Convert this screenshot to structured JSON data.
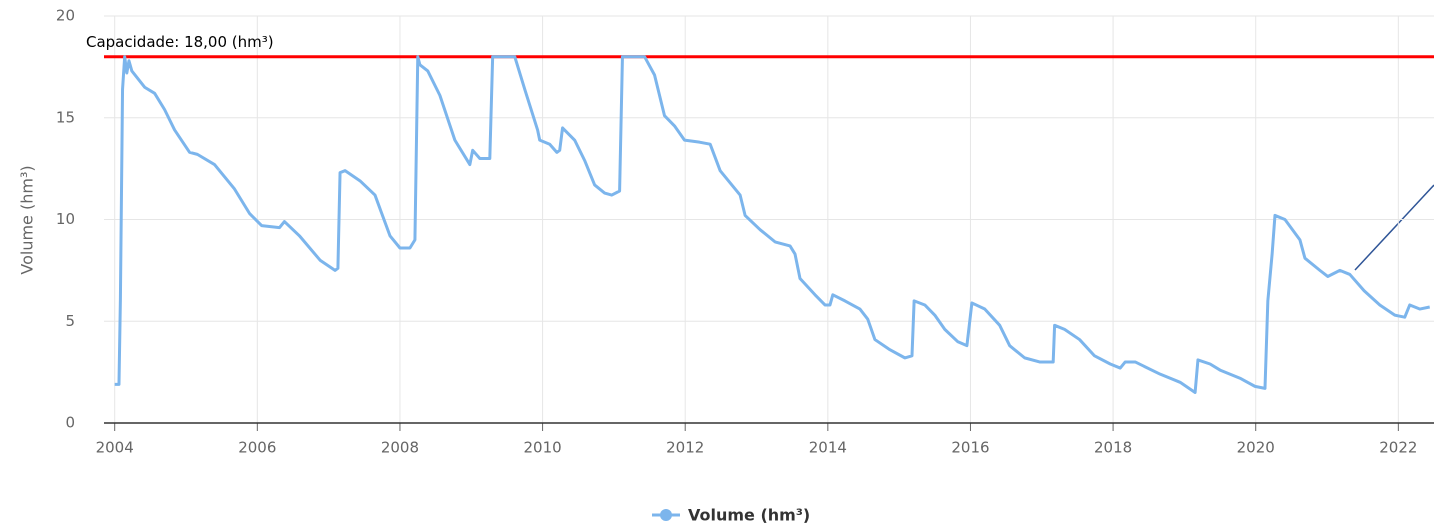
{
  "chart_data": {
    "type": "line",
    "y_axis_label": "Volume (hm³)",
    "capacity": {
      "value": 18,
      "label": "Capacidade: 18,00 (hm³)",
      "color": "#ff0000"
    },
    "xlim": [
      2003.85,
      2022.5
    ],
    "xticks": [
      2004,
      2006,
      2008,
      2010,
      2012,
      2014,
      2016,
      2018,
      2020,
      2022
    ],
    "ylim": [
      0,
      20
    ],
    "yticks": [
      0,
      5,
      10,
      15,
      20
    ],
    "grid": true,
    "legend": "bottom",
    "x": [
      2004.0,
      2004.06,
      2004.08,
      2004.11,
      2004.14,
      2004.17,
      2004.2,
      2004.24,
      2004.42,
      2004.56,
      2004.7,
      2004.84,
      2005.05,
      2005.16,
      2005.4,
      2005.68,
      2005.89,
      2006.06,
      2006.31,
      2006.38,
      2006.59,
      2006.88,
      2007.09,
      2007.13,
      2007.16,
      2007.23,
      2007.44,
      2007.65,
      2007.86,
      2008.0,
      2008.14,
      2008.21,
      2008.25,
      2008.28,
      2008.39,
      2008.56,
      2008.77,
      2008.98,
      2009.02,
      2009.12,
      2009.26,
      2009.3,
      2009.61,
      2009.75,
      2009.93,
      2009.96,
      2010.1,
      2010.2,
      2010.24,
      2010.28,
      2010.45,
      2010.59,
      2010.73,
      2010.87,
      2010.97,
      2011.08,
      2011.12,
      2011.43,
      2011.57,
      2011.71,
      2011.85,
      2011.99,
      2012.2,
      2012.35,
      2012.49,
      2012.77,
      2012.84,
      2013.05,
      2013.26,
      2013.47,
      2013.54,
      2013.61,
      2013.82,
      2013.96,
      2014.03,
      2014.07,
      2014.24,
      2014.45,
      2014.56,
      2014.66,
      2014.87,
      2015.08,
      2015.18,
      2015.21,
      2015.36,
      2015.5,
      2015.64,
      2015.82,
      2015.95,
      2016.02,
      2016.2,
      2016.41,
      2016.55,
      2016.76,
      2016.97,
      2017.16,
      2017.18,
      2017.32,
      2017.53,
      2017.74,
      2017.96,
      2018.1,
      2018.17,
      2018.31,
      2018.66,
      2018.94,
      2019.15,
      2019.19,
      2019.36,
      2019.5,
      2019.78,
      2019.99,
      2020.13,
      2020.17,
      2020.23,
      2020.27,
      2020.41,
      2020.62,
      2020.69,
      2020.9,
      2021.01,
      2021.18,
      2021.32,
      2021.52,
      2021.74,
      2021.95,
      2022.09,
      2022.16,
      2022.3,
      2022.44
    ],
    "series": [
      {
        "name": "Volume (hm³)",
        "color": "#7cb5ec",
        "values": [
          1.9,
          1.9,
          6.1,
          16.4,
          18.0,
          17.2,
          17.8,
          17.3,
          16.5,
          16.2,
          15.4,
          14.4,
          13.3,
          13.2,
          12.7,
          11.5,
          10.3,
          9.7,
          9.6,
          9.9,
          9.2,
          8.0,
          7.5,
          7.6,
          12.3,
          12.4,
          11.9,
          11.2,
          9.2,
          8.6,
          8.6,
          9.0,
          18.0,
          17.6,
          17.3,
          16.1,
          13.9,
          12.7,
          13.4,
          13.0,
          13.0,
          18.0,
          18.0,
          16.4,
          14.4,
          13.9,
          13.7,
          13.3,
          13.4,
          14.5,
          13.9,
          12.9,
          11.7,
          11.3,
          11.2,
          11.4,
          18.0,
          18.0,
          17.1,
          15.1,
          14.6,
          13.9,
          13.8,
          13.7,
          12.4,
          11.2,
          10.2,
          9.5,
          8.9,
          8.7,
          8.3,
          7.1,
          6.3,
          5.8,
          5.8,
          6.3,
          6.0,
          5.6,
          5.1,
          4.1,
          3.6,
          3.2,
          3.3,
          6.0,
          5.8,
          5.3,
          4.6,
          4.0,
          3.8,
          5.9,
          5.6,
          4.8,
          3.8,
          3.2,
          3.0,
          3.0,
          4.8,
          4.6,
          4.1,
          3.3,
          2.9,
          2.7,
          3.0,
          3.0,
          2.4,
          2.0,
          1.5,
          3.1,
          2.9,
          2.6,
          2.2,
          1.8,
          1.7,
          6.0,
          8.3,
          10.2,
          10.0,
          9.0,
          8.1,
          7.5,
          7.2,
          7.5,
          7.3,
          6.5,
          5.8,
          5.3,
          5.2,
          5.8,
          5.6,
          5.7
        ]
      }
    ]
  }
}
